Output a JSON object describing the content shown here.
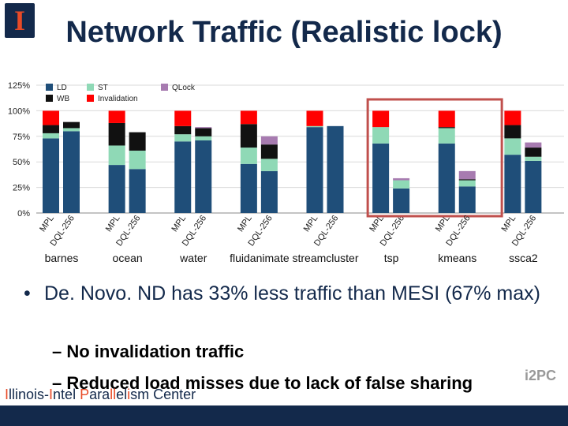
{
  "header": {
    "title": "Network Traffic (Realistic lock)",
    "logo_text": "I"
  },
  "colors": {
    "LD": "#1f4e79",
    "ST": "#8fd9b6",
    "WB": "#111111",
    "Invalidation": "#ff0000",
    "QLock": "#a77bb0",
    "highlight": "#c0504d"
  },
  "chart_data": {
    "type": "bar",
    "stacked": true,
    "y_ticks": [
      "0%",
      "25%",
      "50%",
      "75%",
      "100%",
      "125%"
    ],
    "ylim": [
      0,
      125
    ],
    "legend": [
      "LD",
      "WB",
      "ST",
      "Invalidation",
      "QLock"
    ],
    "legend_placement": "top-left",
    "highlighted_group": "tsp",
    "groups": [
      {
        "name": "barnes",
        "bars": [
          {
            "label": "MPL",
            "LD": 73,
            "ST": 5,
            "WB": 8,
            "Invalidation": 14,
            "QLock": 0
          },
          {
            "label": "DQL-256",
            "LD": 80,
            "ST": 3,
            "WB": 6,
            "Invalidation": 0,
            "QLock": 0
          }
        ]
      },
      {
        "name": "ocean",
        "bars": [
          {
            "label": "MPL",
            "LD": 47,
            "ST": 19,
            "WB": 22,
            "Invalidation": 12,
            "QLock": 0
          },
          {
            "label": "DQL-256",
            "LD": 43,
            "ST": 18,
            "WB": 18,
            "Invalidation": 0,
            "QLock": 0
          }
        ]
      },
      {
        "name": "water",
        "bars": [
          {
            "label": "MPL",
            "LD": 70,
            "ST": 7,
            "WB": 8,
            "Invalidation": 15,
            "QLock": 0
          },
          {
            "label": "DQL-256",
            "LD": 71,
            "ST": 4,
            "WB": 8,
            "Invalidation": 0,
            "QLock": 1
          }
        ]
      },
      {
        "name": "fluidanimate",
        "bars": [
          {
            "label": "MPL",
            "LD": 48,
            "ST": 16,
            "WB": 23,
            "Invalidation": 13,
            "QLock": 0
          },
          {
            "label": "DQL-256",
            "LD": 41,
            "ST": 12,
            "WB": 14,
            "Invalidation": 0,
            "QLock": 8
          }
        ]
      },
      {
        "name": "streamcluster",
        "bars": [
          {
            "label": "MPL",
            "LD": 84,
            "ST": 1,
            "WB": 0,
            "Invalidation": 15,
            "QLock": 0
          },
          {
            "label": "DQL-256",
            "LD": 85,
            "ST": 0,
            "WB": 0,
            "Invalidation": 0,
            "QLock": 0
          }
        ]
      },
      {
        "name": "tsp",
        "bars": [
          {
            "label": "MPL",
            "LD": 68,
            "ST": 16,
            "WB": 0,
            "Invalidation": 16,
            "QLock": 0
          },
          {
            "label": "DQL-256",
            "LD": 24,
            "ST": 8,
            "WB": 0,
            "Invalidation": 0,
            "QLock": 2
          }
        ]
      },
      {
        "name": "kmeans",
        "bars": [
          {
            "label": "MPL",
            "LD": 68,
            "ST": 15,
            "WB": 1,
            "Invalidation": 16,
            "QLock": 0
          },
          {
            "label": "DQL-256",
            "LD": 26,
            "ST": 6,
            "WB": 1,
            "Invalidation": 0,
            "QLock": 8
          }
        ]
      },
      {
        "name": "ssca2",
        "bars": [
          {
            "label": "MPL",
            "LD": 57,
            "ST": 16,
            "WB": 13,
            "Invalidation": 14,
            "QLock": 0
          },
          {
            "label": "DQL-256",
            "LD": 51,
            "ST": 4,
            "WB": 9,
            "Invalidation": 0,
            "QLock": 5
          }
        ]
      }
    ]
  },
  "bullets": {
    "main": "De. Novo. ND has 33% less traffic than MESI (67% max)",
    "sub1": "No invalidation traffic",
    "sub2": "Reduced load misses due to lack of false sharing"
  },
  "footer": {
    "parts": [
      "I",
      "llinois-",
      "I",
      "ntel ",
      "P",
      "ara",
      "ll",
      "el",
      "i",
      "sm Center"
    ],
    "logo": "i2PC"
  }
}
